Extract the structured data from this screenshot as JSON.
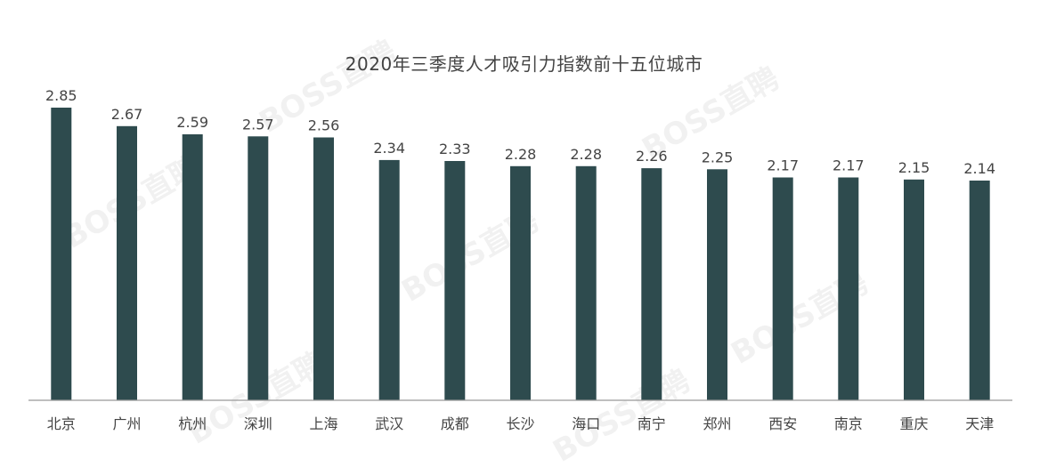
{
  "chart_data": {
    "type": "bar",
    "title": "2020年三季度人才吸引力指数前十五位城市",
    "categories": [
      "北京",
      "广州",
      "杭州",
      "深圳",
      "上海",
      "武汉",
      "成都",
      "长沙",
      "海口",
      "南宁",
      "郑州",
      "西安",
      "南京",
      "重庆",
      "天津"
    ],
    "values": [
      2.85,
      2.67,
      2.59,
      2.57,
      2.56,
      2.34,
      2.33,
      2.28,
      2.28,
      2.26,
      2.25,
      2.17,
      2.17,
      2.15,
      2.14
    ],
    "value_labels": [
      "2.85",
      "2.67",
      "2.59",
      "2.57",
      "2.56",
      "2.34",
      "2.33",
      "2.28",
      "2.28",
      "2.26",
      "2.25",
      "2.17",
      "2.17",
      "2.15",
      "2.14"
    ],
    "xlabel": "",
    "ylabel": "",
    "ylim": [
      0,
      2.85
    ],
    "grid": false,
    "legend": "none",
    "bar_color": "#2e4b4e",
    "axis_color": "#999999",
    "label_color": "#444444"
  },
  "watermark": {
    "text": "BOSS直聘"
  }
}
